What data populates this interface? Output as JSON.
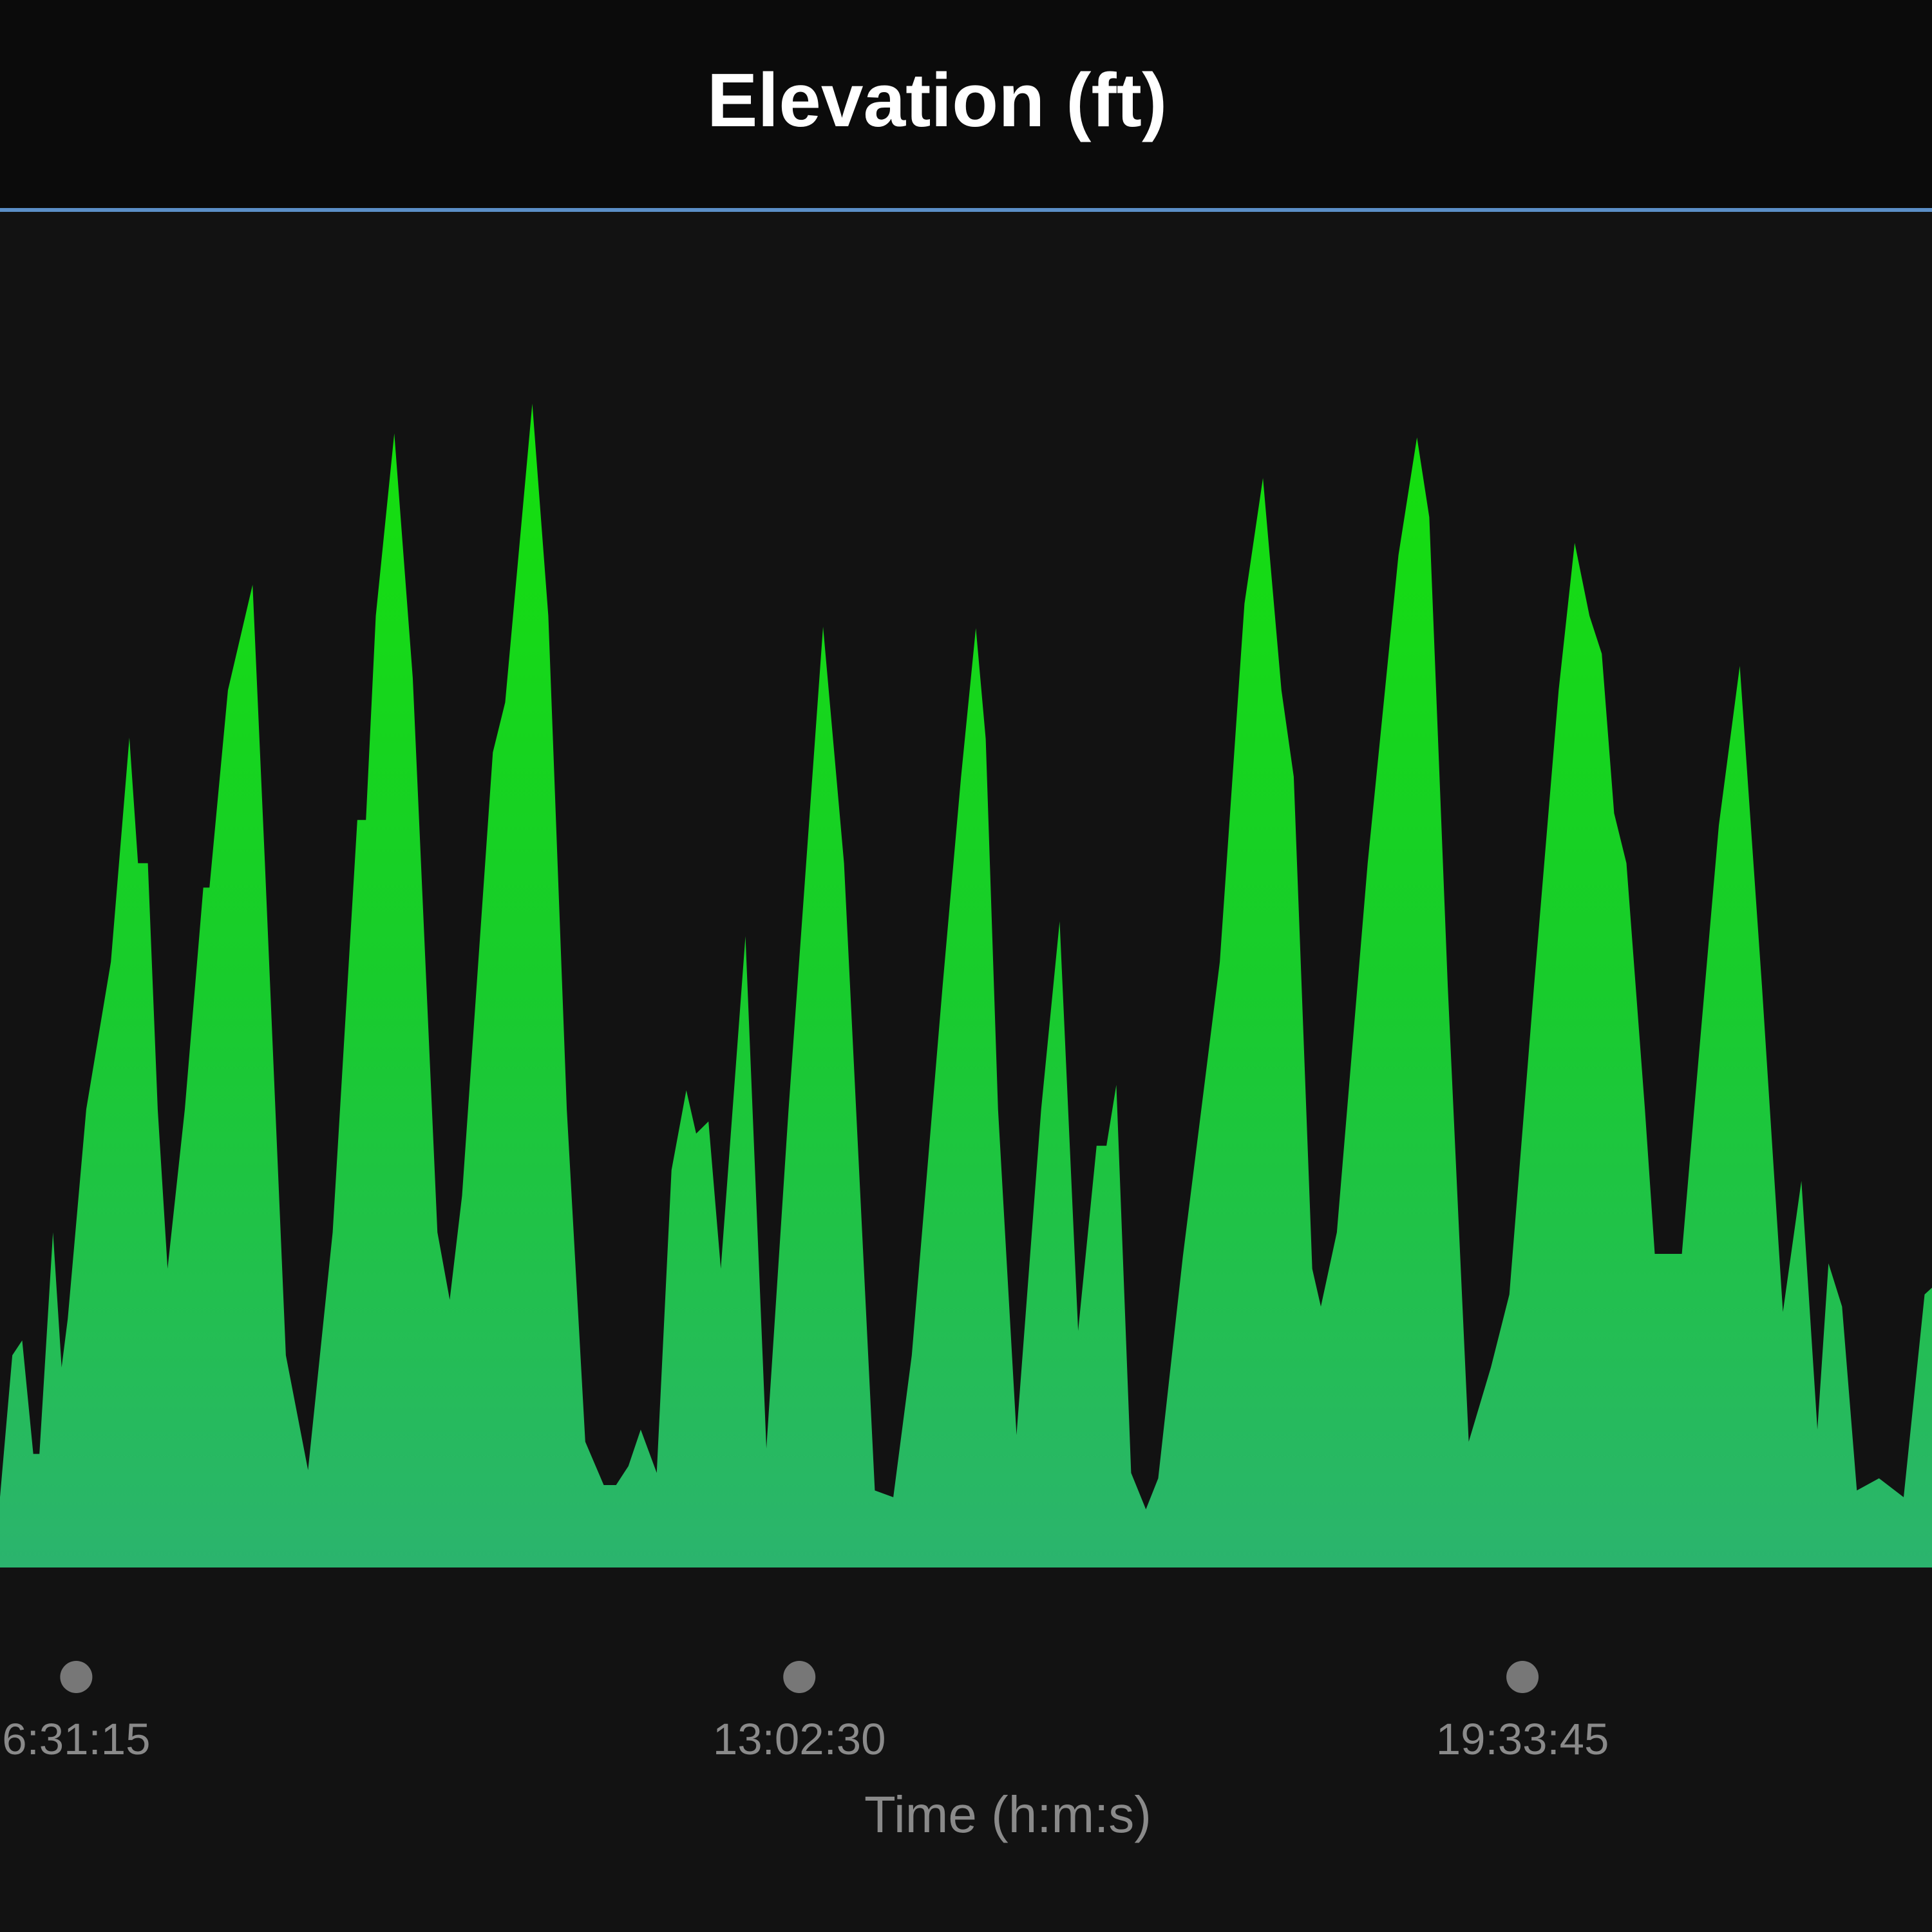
{
  "chart_data": {
    "type": "area",
    "title": "Elevation (ft)",
    "x_label": "Time (h:m:s)",
    "x": [
      21000,
      21400,
      21720,
      22080,
      22280,
      22720,
      23000,
      23200,
      23800,
      24600,
      25200,
      25480,
      25800,
      26120,
      26440,
      27000,
      27600,
      27800,
      28400,
      29200,
      29600,
      30280,
      31000,
      31800,
      32600,
      32880,
      33200,
      33800,
      34400,
      35200,
      35600,
      36000,
      37000,
      37400,
      38280,
      38800,
      39400,
      40000,
      40600,
      41000,
      41400,
      41800,
      42320,
      42800,
      43280,
      43600,
      44000,
      44400,
      45200,
      45880,
      46600,
      47720,
      48400,
      49400,
      50000,
      50600,
      51600,
      52200,
      52680,
      53000,
      53400,
      54000,
      54800,
      55400,
      56000,
      56600,
      56920,
      57240,
      57720,
      58200,
      58600,
      59400,
      60600,
      61400,
      62000,
      62600,
      63000,
      63600,
      63880,
      64400,
      65400,
      66400,
      67000,
      67400,
      68000,
      68680,
      69400,
      70000,
      70800,
      71600,
      72120,
      72600,
      73000,
      73400,
      73800,
      74400,
      74720,
      75600,
      76000,
      76800,
      77480,
      78200,
      78880,
      79480,
      80000,
      80360,
      80800,
      81280,
      82000,
      82800,
      83480,
      83720
    ],
    "values": [
      5.2,
      15.7,
      16.8,
      8.4,
      8.4,
      24.8,
      14.8,
      18.4,
      33.9,
      44.8,
      61.4,
      52.1,
      52.1,
      33.9,
      22.1,
      33.9,
      50.3,
      50.3,
      64.9,
      72.7,
      52.1,
      15.7,
      7.2,
      24.8,
      55.3,
      55.3,
      70.4,
      83.9,
      65.8,
      24.8,
      19.8,
      27.5,
      60.3,
      64.0,
      86.1,
      70.4,
      33.9,
      9.3,
      6.1,
      6.1,
      7.5,
      10.2,
      7.0,
      29.4,
      35.3,
      32.1,
      33.0,
      22.1,
      46.7,
      8.8,
      33.9,
      69.6,
      52.1,
      5.7,
      5.2,
      15.7,
      43.0,
      58.5,
      69.5,
      61.3,
      33.9,
      9.8,
      33.9,
      47.8,
      17.5,
      31.2,
      31.2,
      35.7,
      7.0,
      4.3,
      6.6,
      23.0,
      44.8,
      71.3,
      80.6,
      64.9,
      58.5,
      22.1,
      19.3,
      24.8,
      52.1,
      74.9,
      83.6,
      77.7,
      43.0,
      9.3,
      14.8,
      20.2,
      43.0,
      64.9,
      75.8,
      70.4,
      67.6,
      55.8,
      52.1,
      33.9,
      23.2,
      23.2,
      33.9,
      54.9,
      66.7,
      43.0,
      18.9,
      28.6,
      10.2,
      22.5,
      19.3,
      5.7,
      6.6,
      5.2,
      20.2,
      20.7
    ],
    "xlim": [
      21000,
      83720
    ],
    "ylim": [
      0,
      100
    ],
    "xticks": [
      {
        "value": 23475,
        "label": "6:31:15"
      },
      {
        "value": 46950,
        "label": "13:02:30"
      },
      {
        "value": 70425,
        "label": "19:33:45"
      }
    ],
    "colors": [
      "#14e00c",
      "#18cc2c",
      "#2bb46e"
    ]
  }
}
